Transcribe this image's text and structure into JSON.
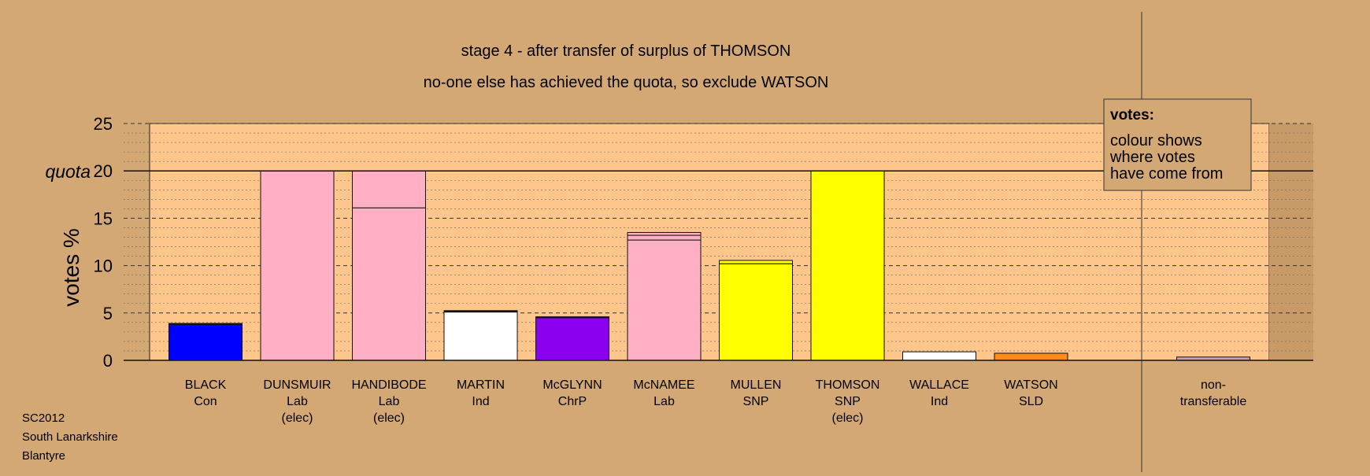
{
  "chart_data": {
    "type": "bar",
    "title": "stage 4 - after transfer of surplus of THOMSON",
    "subtitle": "no-one else has achieved the quota, so exclude WATSON",
    "ylabel": "votes %",
    "ylim": [
      0,
      25
    ],
    "yticks": [
      "0",
      "5",
      "10",
      "15",
      "20",
      "25"
    ],
    "quota": 20,
    "quota_label": "quota",
    "grid": true,
    "candidates": [
      {
        "name": "BLACK",
        "party": "Con",
        "status": "",
        "segments": [
          {
            "value": 3.8,
            "color": "#0000ff"
          },
          {
            "value": 0.1,
            "color": "#111111"
          }
        ]
      },
      {
        "name": "DUNSMUIR",
        "party": "Lab",
        "status": "(elec)",
        "segments": [
          {
            "value": 20.0,
            "color": "#ffb0c4"
          }
        ]
      },
      {
        "name": "HANDIBODE",
        "party": "Lab",
        "status": "(elec)",
        "segments": [
          {
            "value": 16.1,
            "color": "#ffb0c4"
          },
          {
            "value": 3.9,
            "color": "#ffb0c4"
          }
        ]
      },
      {
        "name": "MARTIN",
        "party": "Ind",
        "status": "",
        "segments": [
          {
            "value": 5.1,
            "color": "#ffffff"
          },
          {
            "value": 0.15,
            "color": "#111111"
          }
        ]
      },
      {
        "name": "McGLYNN",
        "party": "ChrP",
        "status": "",
        "segments": [
          {
            "value": 4.5,
            "color": "#8b00ee"
          },
          {
            "value": 0.1,
            "color": "#111111"
          }
        ]
      },
      {
        "name": "McNAMEE",
        "party": "Lab",
        "status": "",
        "segments": [
          {
            "value": 12.7,
            "color": "#ffb0c4"
          },
          {
            "value": 0.5,
            "color": "#ffb0c4"
          },
          {
            "value": 0.3,
            "color": "#ffb0c4"
          }
        ]
      },
      {
        "name": "MULLEN",
        "party": "SNP",
        "status": "",
        "segments": [
          {
            "value": 10.2,
            "color": "#ffff00"
          },
          {
            "value": 0.35,
            "color": "#ffff00"
          }
        ]
      },
      {
        "name": "THOMSON",
        "party": "SNP",
        "status": "(elec)",
        "segments": [
          {
            "value": 20.0,
            "color": "#ffff00"
          }
        ]
      },
      {
        "name": "WALLACE",
        "party": "Ind",
        "status": "",
        "segments": [
          {
            "value": 0.9,
            "color": "#ffffff"
          }
        ]
      },
      {
        "name": "WATSON",
        "party": "SLD",
        "status": "",
        "segments": [
          {
            "value": 0.75,
            "color": "#ff8c1a"
          }
        ]
      }
    ],
    "nontransferable": {
      "label_line1": "non-",
      "label_line2": "transferable",
      "value": 0.35,
      "color": "#c8a0b0"
    }
  },
  "legend": {
    "title": "votes:",
    "line1": "colour shows",
    "line2": "where votes",
    "line3": "have come from"
  },
  "footer": {
    "line1": "SC2012",
    "line2": "South Lanarkshire",
    "line3": "Blantyre"
  },
  "colors": {
    "background": "#d4a875",
    "plot_area": "#ffc68c",
    "border": "#111111"
  }
}
